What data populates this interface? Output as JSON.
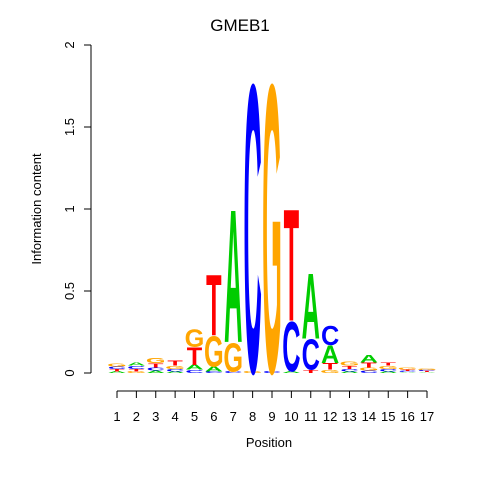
{
  "chart_data": {
    "type": "sequence-logo",
    "title": "GMEB1",
    "xlabel": "Position",
    "ylabel": "Information content",
    "ylim": [
      0,
      2
    ],
    "yticks": [
      "0",
      "0.5",
      "1",
      "1.5",
      "2"
    ],
    "ytick_values": [
      0,
      0.5,
      1,
      1.5,
      2
    ],
    "positions": [
      "1",
      "2",
      "3",
      "4",
      "5",
      "6",
      "7",
      "8",
      "9",
      "10",
      "11",
      "12",
      "13",
      "14",
      "15",
      "16",
      "17"
    ],
    "colors": {
      "A": "#00cc00",
      "C": "#0000ff",
      "G": "#ffa500",
      "T": "#ff0000"
    },
    "columns": [
      {
        "position": 1,
        "letters": [
          {
            "base": "A",
            "height": 0.01
          },
          {
            "base": "T",
            "height": 0.015
          },
          {
            "base": "C",
            "height": 0.015
          },
          {
            "base": "G",
            "height": 0.02
          }
        ]
      },
      {
        "position": 2,
        "letters": [
          {
            "base": "G",
            "height": 0.01
          },
          {
            "base": "T",
            "height": 0.015
          },
          {
            "base": "C",
            "height": 0.02
          },
          {
            "base": "A",
            "height": 0.02
          }
        ]
      },
      {
        "position": 3,
        "letters": [
          {
            "base": "A",
            "height": 0.015
          },
          {
            "base": "C",
            "height": 0.02
          },
          {
            "base": "T",
            "height": 0.025
          },
          {
            "base": "G",
            "height": 0.03
          }
        ]
      },
      {
        "position": 4,
        "letters": [
          {
            "base": "A",
            "height": 0.01
          },
          {
            "base": "C",
            "height": 0.015
          },
          {
            "base": "G",
            "height": 0.02
          },
          {
            "base": "T",
            "height": 0.03
          }
        ]
      },
      {
        "position": 5,
        "letters": [
          {
            "base": "C",
            "height": 0.02
          },
          {
            "base": "A",
            "height": 0.03
          },
          {
            "base": "T",
            "height": 0.11
          },
          {
            "base": "G",
            "height": 0.11
          }
        ]
      },
      {
        "position": 6,
        "letters": [
          {
            "base": "C",
            "height": 0.01
          },
          {
            "base": "A",
            "height": 0.03
          },
          {
            "base": "G",
            "height": 0.19
          },
          {
            "base": "T",
            "height": 0.38
          }
        ]
      },
      {
        "position": 7,
        "letters": [
          {
            "base": "C",
            "height": 0.01
          },
          {
            "base": "G",
            "height": 0.18
          },
          {
            "base": "A",
            "height": 0.83
          }
        ]
      },
      {
        "position": 8,
        "letters": [
          {
            "base": "G",
            "height": 0.01
          },
          {
            "base": "C",
            "height": 1.8
          }
        ]
      },
      {
        "position": 9,
        "letters": [
          {
            "base": "C",
            "height": 0.01
          },
          {
            "base": "G",
            "height": 1.8
          }
        ]
      },
      {
        "position": 10,
        "letters": [
          {
            "base": "A",
            "height": 0.01
          },
          {
            "base": "C",
            "height": 0.31
          },
          {
            "base": "T",
            "height": 0.7
          }
        ]
      },
      {
        "position": 11,
        "letters": [
          {
            "base": "T",
            "height": 0.02
          },
          {
            "base": "C",
            "height": 0.19
          },
          {
            "base": "A",
            "height": 0.41
          }
        ]
      },
      {
        "position": 12,
        "letters": [
          {
            "base": "G",
            "height": 0.02
          },
          {
            "base": "T",
            "height": 0.04
          },
          {
            "base": "A",
            "height": 0.11
          },
          {
            "base": "C",
            "height": 0.12
          }
        ]
      },
      {
        "position": 13,
        "letters": [
          {
            "base": "A",
            "height": 0.01
          },
          {
            "base": "C",
            "height": 0.015
          },
          {
            "base": "T",
            "height": 0.02
          },
          {
            "base": "G",
            "height": 0.025
          }
        ]
      },
      {
        "position": 14,
        "letters": [
          {
            "base": "C",
            "height": 0.015
          },
          {
            "base": "G",
            "height": 0.02
          },
          {
            "base": "T",
            "height": 0.03
          },
          {
            "base": "A",
            "height": 0.05
          }
        ]
      },
      {
        "position": 15,
        "letters": [
          {
            "base": "A",
            "height": 0.01
          },
          {
            "base": "C",
            "height": 0.015
          },
          {
            "base": "G",
            "height": 0.02
          },
          {
            "base": "T",
            "height": 0.02
          }
        ]
      },
      {
        "position": 16,
        "letters": [
          {
            "base": "A",
            "height": 0.005
          },
          {
            "base": "C",
            "height": 0.008
          },
          {
            "base": "T",
            "height": 0.008
          },
          {
            "base": "G",
            "height": 0.01
          }
        ]
      },
      {
        "position": 17,
        "letters": [
          {
            "base": "A",
            "height": 0.005
          },
          {
            "base": "T",
            "height": 0.006
          },
          {
            "base": "C",
            "height": 0.006
          },
          {
            "base": "G",
            "height": 0.008
          }
        ]
      }
    ]
  }
}
